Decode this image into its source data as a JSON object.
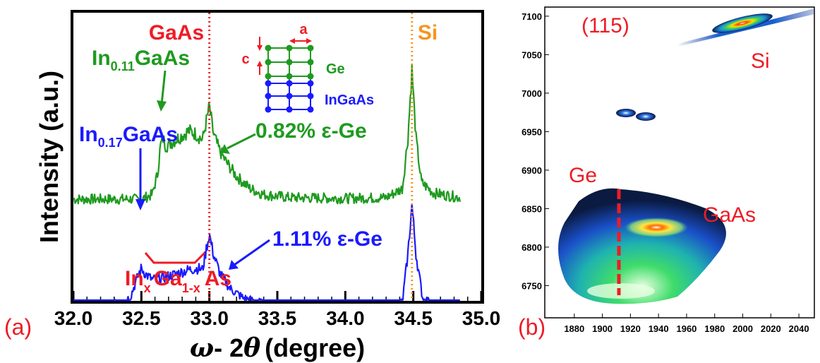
{
  "colors": {
    "green": "#1f9a1f",
    "blue": "#1a1aff",
    "red": "#ee1c25",
    "orange": "#f7941d",
    "black": "#000000"
  },
  "panel_a": {
    "label": "(a)",
    "ylabel": "Intensity (a.u.)",
    "xlabel_omega": "ω",
    "xlabel_minus": "- 2",
    "xlabel_theta": "θ",
    "xlabel_unit": "(degree)",
    "inset": {
      "a": "a",
      "c": "c",
      "ge": "Ge",
      "ingaas": "InGaAs"
    },
    "annotations": {
      "gaas": "GaAs",
      "si": "Si",
      "in011_in": "In",
      "in011_sub": "0.11",
      "in011_gaas": "GaAs",
      "in017_in": "In",
      "in017_sub": "0.17",
      "in017_gaas": "GaAs",
      "strain_green": "0.82% ε-Ge",
      "strain_blue": "1.11% ε-Ge",
      "inxgaas_in": "In",
      "inxgaas_x": "x",
      "inxgaas_ga": "Ga",
      "inxgaas_1x": "1-x",
      "inxgaas_as": "As"
    }
  },
  "panel_b": {
    "label": "(b)",
    "title": "(115)",
    "si": "Si",
    "ge": "Ge",
    "gaas": "GaAs"
  },
  "chart_data": [
    {
      "type": "line",
      "xlabel": "ω- 2θ (degree)",
      "ylabel": "Intensity (a.u.)",
      "xlim": [
        32.0,
        35.0
      ],
      "xticks": [
        "32.0",
        "32.5",
        "33.0",
        "33.5",
        "34.0",
        "34.5",
        "35.0"
      ],
      "grid": false,
      "reference_lines": [
        {
          "label": "GaAs",
          "x": 33.0,
          "color": "#ee1c25"
        },
        {
          "label": "Si",
          "x": 34.49,
          "color": "#f7941d"
        }
      ],
      "series": [
        {
          "name": "0.82% ε-Ge",
          "color": "#1f9a1f",
          "points": [
            [
              32.0,
              0.15
            ],
            [
              32.5,
              0.15
            ],
            [
              32.58,
              0.18
            ],
            [
              32.62,
              0.32
            ],
            [
              32.64,
              0.5
            ],
            [
              32.66,
              0.55
            ],
            [
              32.68,
              0.5
            ],
            [
              32.7,
              0.51
            ],
            [
              32.75,
              0.54
            ],
            [
              32.8,
              0.57
            ],
            [
              32.85,
              0.6
            ],
            [
              32.9,
              0.58
            ],
            [
              32.95,
              0.54
            ],
            [
              33.0,
              0.76
            ],
            [
              33.03,
              0.58
            ],
            [
              33.07,
              0.48
            ],
            [
              33.12,
              0.4
            ],
            [
              33.2,
              0.3
            ],
            [
              33.3,
              0.22
            ],
            [
              33.4,
              0.18
            ],
            [
              33.6,
              0.16
            ],
            [
              34.0,
              0.155
            ],
            [
              34.3,
              0.16
            ],
            [
              34.42,
              0.22
            ],
            [
              34.46,
              0.55
            ],
            [
              34.49,
              1.0
            ],
            [
              34.52,
              0.55
            ],
            [
              34.56,
              0.26
            ],
            [
              34.65,
              0.19
            ],
            [
              34.85,
              0.16
            ]
          ]
        },
        {
          "name": "1.11% ε-Ge",
          "color": "#1a1aff",
          "points": [
            [
              32.0,
              0.03
            ],
            [
              32.35,
              0.05
            ],
            [
              32.42,
              0.1
            ],
            [
              32.48,
              0.26
            ],
            [
              32.5,
              0.3
            ],
            [
              32.53,
              0.26
            ],
            [
              32.58,
              0.22
            ],
            [
              32.65,
              0.23
            ],
            [
              32.75,
              0.26
            ],
            [
              32.85,
              0.29
            ],
            [
              32.92,
              0.3
            ],
            [
              32.95,
              0.29
            ],
            [
              32.98,
              0.45
            ],
            [
              33.0,
              0.54
            ],
            [
              33.03,
              0.4
            ],
            [
              33.08,
              0.26
            ],
            [
              33.15,
              0.16
            ],
            [
              33.25,
              0.09
            ],
            [
              33.4,
              0.05
            ],
            [
              33.8,
              0.03
            ],
            [
              34.3,
              0.035
            ],
            [
              34.42,
              0.06
            ],
            [
              34.46,
              0.4
            ],
            [
              34.49,
              0.75
            ],
            [
              34.52,
              0.4
            ],
            [
              34.57,
              0.08
            ],
            [
              34.7,
              0.03
            ],
            [
              34.85,
              0.03
            ]
          ]
        }
      ]
    },
    {
      "type": "heatmap",
      "title": "(115)",
      "xlim": [
        1860,
        2050
      ],
      "ylim": [
        6710,
        7110
      ],
      "xticks": [
        "1880",
        "1900",
        "1920",
        "1940",
        "1960",
        "1980",
        "2000",
        "2020",
        "2040"
      ],
      "yticks": [
        "6750",
        "6800",
        "6850",
        "6900",
        "6950",
        "7000",
        "7050",
        "7100"
      ],
      "grid": false,
      "peaks": [
        {
          "label": "Si",
          "x": 2010,
          "y": 7085,
          "intensity": 1.0
        },
        {
          "label": "GaAs",
          "x": 1932,
          "y": 6815,
          "intensity": 0.9
        },
        {
          "label": "Ge",
          "x": 1918,
          "y": 6730,
          "intensity": 0.85
        },
        {
          "x": 1930,
          "y": 6988,
          "intensity": 0.6
        },
        {
          "x": 1916,
          "y": 6965,
          "intensity": 0.55
        }
      ],
      "reference_lines": [
        {
          "label": "Ge",
          "x": 1916,
          "color": "#ee1c25"
        }
      ]
    }
  ]
}
